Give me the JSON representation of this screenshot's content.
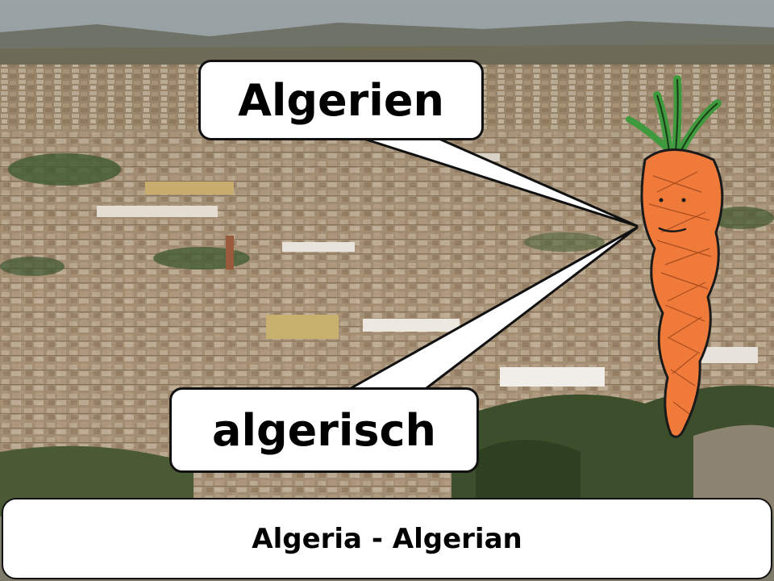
{
  "bubbles": {
    "top_text": "Algerien",
    "bottom_text": "algerisch"
  },
  "caption": {
    "text": "Algeria - Algerian"
  },
  "colors": {
    "carrot_body": "#f07a3a",
    "carrot_leaves": "#3e9a3c",
    "bubble_fill": "#ffffff",
    "outline": "#111111"
  }
}
